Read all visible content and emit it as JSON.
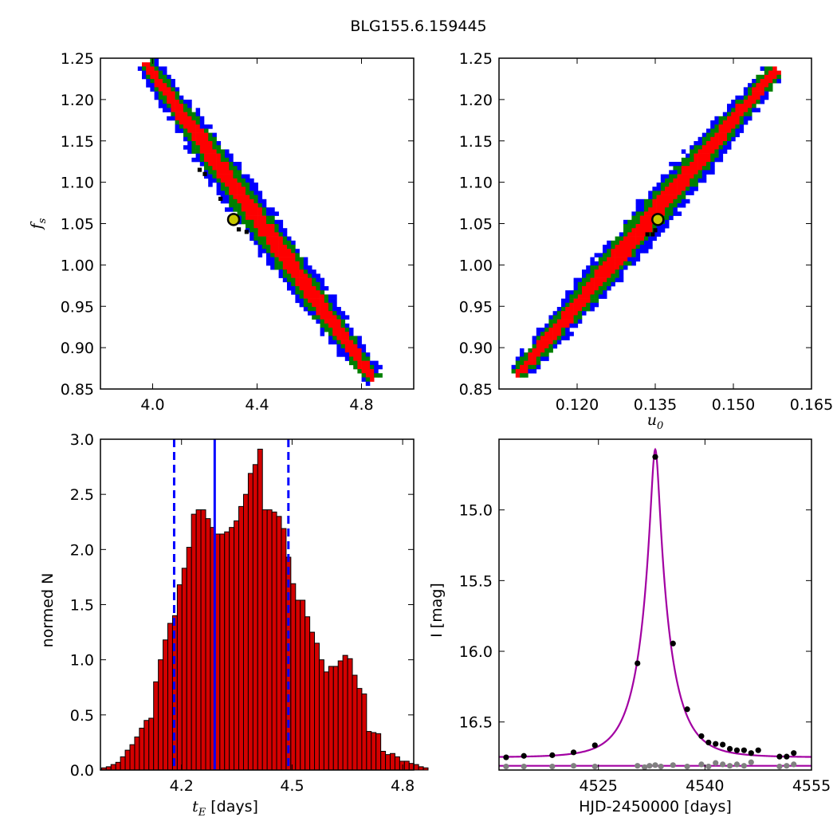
{
  "suptitle": "BLG155.6.159445",
  "colors": {
    "outer_region": "#0000ff",
    "middle_region": "#007f00",
    "inner_region": "#ff0000",
    "best_samples": "#000000",
    "best_fit_marker": "#c8c800",
    "hist_bar": "#d40000",
    "hist_lines": "#0000ff",
    "model_curve": "#a200a2",
    "data_points": "#000000",
    "residual_points": "#808080"
  },
  "chart_data": [
    {
      "panel": "top-left",
      "type": "heatmap",
      "xlabel": "",
      "ylabel": "f_s",
      "xlim": [
        3.8,
        5.0
      ],
      "ylim": [
        0.85,
        1.25
      ],
      "xticks": [
        "4.0",
        "4.4",
        "4.8"
      ],
      "xtick_values": [
        4.0,
        4.4,
        4.8
      ],
      "yticks": [
        "0.85",
        "0.90",
        "0.95",
        "1.00",
        "1.05",
        "1.10",
        "1.15",
        "1.20",
        "1.25"
      ],
      "ytick_values": [
        0.85,
        0.9,
        0.95,
        1.0,
        1.05,
        1.1,
        1.15,
        1.2,
        1.25
      ],
      "ridge": {
        "x_at_top": 3.98,
        "y_top": 1.24,
        "x_at_bottom": 4.84,
        "y_bottom": 0.865
      },
      "best_fit": {
        "x": 4.31,
        "y": 1.055
      },
      "black_samples": [
        [
          4.18,
          1.115
        ],
        [
          4.2,
          1.11
        ],
        [
          4.26,
          1.08
        ],
        [
          4.33,
          1.043
        ],
        [
          4.36,
          1.04
        ]
      ]
    },
    {
      "panel": "top-right",
      "type": "heatmap",
      "xlabel": "u_0",
      "ylabel": "",
      "xlim": [
        0.105,
        0.165
      ],
      "ylim": [
        0.85,
        1.25
      ],
      "xticks": [
        "0.120",
        "0.135",
        "0.150",
        "0.165"
      ],
      "xtick_values": [
        0.12,
        0.135,
        0.15,
        0.165
      ],
      "yticks": [
        "0.85",
        "0.90",
        "0.95",
        "1.00",
        "1.05",
        "1.10",
        "1.15",
        "1.20",
        "1.25"
      ],
      "ytick_values": [
        0.85,
        0.9,
        0.95,
        1.0,
        1.05,
        1.1,
        1.15,
        1.2,
        1.25
      ],
      "ridge": {
        "x_at_bottom": 0.109,
        "y_bottom": 0.87,
        "x_at_top": 0.158,
        "y_top": 1.235
      },
      "best_fit": {
        "x": 0.1355,
        "y": 1.055
      },
      "black_samples": [
        [
          0.1335,
          1.037
        ],
        [
          0.1345,
          1.037
        ],
        [
          0.135,
          1.042
        ]
      ]
    },
    {
      "panel": "bottom-left",
      "type": "bar",
      "xlabel": "t_E [days]",
      "ylabel": "normed N",
      "xlim": [
        3.98,
        4.83
      ],
      "ylim": [
        0.0,
        3.0
      ],
      "xticks": [
        "4.2",
        "4.5",
        "4.8"
      ],
      "xtick_values": [
        4.2,
        4.5,
        4.8
      ],
      "yticks": [
        "0.0",
        "0.5",
        "1.0",
        "1.5",
        "2.0",
        "2.5",
        "3.0"
      ],
      "ytick_values": [
        0.0,
        0.5,
        1.0,
        1.5,
        2.0,
        2.5,
        3.0
      ],
      "bin_start": 3.983,
      "bin_width": 0.01284,
      "values": [
        0.02,
        0.03,
        0.05,
        0.07,
        0.12,
        0.18,
        0.23,
        0.3,
        0.38,
        0.45,
        0.47,
        0.8,
        1.0,
        1.18,
        1.33,
        1.4,
        1.68,
        1.83,
        2.02,
        2.32,
        2.36,
        2.36,
        2.28,
        2.2,
        2.14,
        2.14,
        2.16,
        2.2,
        2.26,
        2.39,
        2.5,
        2.69,
        2.77,
        2.91,
        2.36,
        2.36,
        2.34,
        2.3,
        2.19,
        1.93,
        1.69,
        1.54,
        1.54,
        1.39,
        1.25,
        1.15,
        1.0,
        0.89,
        0.94,
        0.94,
        0.99,
        1.04,
        1.01,
        0.86,
        0.74,
        0.69,
        0.35,
        0.34,
        0.33,
        0.17,
        0.14,
        0.15,
        0.12,
        0.08,
        0.08,
        0.06,
        0.05,
        0.03,
        0.02,
        0.0
      ],
      "vlines": [
        {
          "x": 4.18,
          "style": "dashed"
        },
        {
          "x": 4.29,
          "style": "solid"
        },
        {
          "x": 4.49,
          "style": "dashed"
        }
      ]
    },
    {
      "panel": "bottom-right",
      "type": "line",
      "xlabel": "HJD-2450000 [days]",
      "ylabel": "I [mag]",
      "xlim": [
        4511.0,
        4555.0
      ],
      "ylim": [
        16.84,
        14.5
      ],
      "y_inverted": true,
      "xticks": [
        "4525",
        "4540",
        "4555"
      ],
      "xtick_values": [
        4525,
        4540,
        4555
      ],
      "yticks": [
        "15.0",
        "15.5",
        "16.0",
        "16.5"
      ],
      "ytick_values": [
        15.0,
        15.5,
        16.0,
        16.5
      ],
      "model": {
        "t0": 4533.0,
        "tE": 4.31,
        "u0": 0.1355,
        "baseline": 16.75
      },
      "flat_model_level": 16.81,
      "points": [
        [
          4512.0,
          16.75
        ],
        [
          4514.5,
          16.74
        ],
        [
          4518.5,
          16.735
        ],
        [
          4521.5,
          16.715
        ],
        [
          4524.5,
          16.665
        ],
        [
          4530.5,
          16.085
        ],
        [
          4533.0,
          14.625
        ],
        [
          4535.5,
          15.945
        ],
        [
          4537.5,
          16.41
        ],
        [
          4539.5,
          16.6
        ],
        [
          4540.5,
          16.645
        ],
        [
          4541.5,
          16.655
        ],
        [
          4542.5,
          16.66
        ],
        [
          4543.5,
          16.69
        ],
        [
          4544.5,
          16.7
        ],
        [
          4545.5,
          16.7
        ],
        [
          4546.5,
          16.72
        ],
        [
          4547.5,
          16.7
        ],
        [
          4550.5,
          16.745
        ],
        [
          4551.5,
          16.745
        ],
        [
          4552.5,
          16.72
        ]
      ],
      "residual_points": [
        [
          4512.0,
          16.815
        ],
        [
          4514.5,
          16.815
        ],
        [
          4518.5,
          16.815
        ],
        [
          4521.5,
          16.81
        ],
        [
          4524.5,
          16.815
        ],
        [
          4530.5,
          16.81
        ],
        [
          4531.5,
          16.82
        ],
        [
          4532.2,
          16.81
        ],
        [
          4533.0,
          16.805
        ],
        [
          4533.8,
          16.815
        ],
        [
          4535.5,
          16.805
        ],
        [
          4537.5,
          16.815
        ],
        [
          4539.5,
          16.8
        ],
        [
          4540.5,
          16.815
        ],
        [
          4541.5,
          16.79
        ],
        [
          4542.5,
          16.8
        ],
        [
          4543.5,
          16.81
        ],
        [
          4544.5,
          16.8
        ],
        [
          4545.5,
          16.81
        ],
        [
          4546.5,
          16.785
        ],
        [
          4550.5,
          16.815
        ],
        [
          4551.5,
          16.81
        ],
        [
          4552.5,
          16.8
        ]
      ]
    }
  ]
}
